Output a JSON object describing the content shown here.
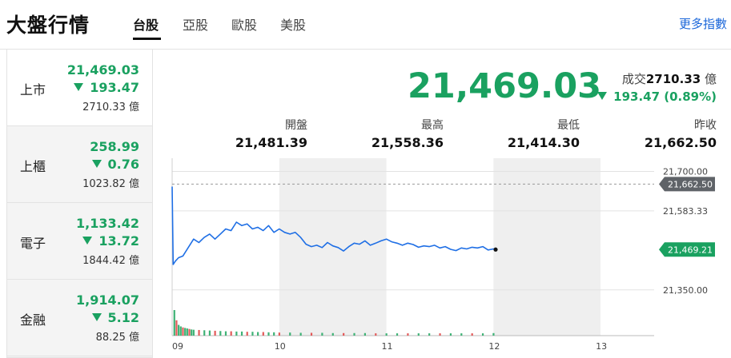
{
  "header": {
    "title": "大盤行情",
    "tabs": [
      {
        "label": "台股",
        "active": true
      },
      {
        "label": "亞股",
        "active": false
      },
      {
        "label": "歐股",
        "active": false
      },
      {
        "label": "美股",
        "active": false
      }
    ],
    "more_link": "更多指數"
  },
  "markets": [
    {
      "name": "上市",
      "price": "21,469.03",
      "change": "193.47",
      "volume": "2710.33 億",
      "direction": "down"
    },
    {
      "name": "上櫃",
      "price": "258.99",
      "change": "0.76",
      "volume": "1023.82 億",
      "direction": "down"
    },
    {
      "name": "電子",
      "price": "1,133.42",
      "change": "13.72",
      "volume": "1844.42 億",
      "direction": "down"
    },
    {
      "name": "金融",
      "price": "1,914.07",
      "change": "5.12",
      "volume": "88.25 億",
      "direction": "down"
    }
  ],
  "quote": {
    "price": "21,469.03",
    "turnover_label": "成交",
    "turnover_value": "2710.33",
    "turnover_unit": "億",
    "change": "193.47 (0.89%)",
    "stats": [
      {
        "label": "開盤",
        "value": "21,481.39"
      },
      {
        "label": "最高",
        "value": "21,558.36"
      },
      {
        "label": "最低",
        "value": "21,414.30"
      },
      {
        "label": "昨收",
        "value": "21,662.50"
      }
    ]
  },
  "colors": {
    "down": "#1aa160",
    "line": "#1f6fe5",
    "flag_prev": "#5f6368",
    "flag_last": "#1aa160",
    "more_link": "#1a66d9"
  },
  "chart_data": {
    "type": "line",
    "x_tick_labels": [
      "09",
      "10",
      "11",
      "12",
      "13"
    ],
    "y_tick_labels": [
      "21,700.00",
      "21,583.33",
      "21,350.00"
    ],
    "y_ticks": [
      21700,
      21583.33,
      21350
    ],
    "ylim": [
      21300,
      21720
    ],
    "xlim_hours": [
      9,
      13.5
    ],
    "reference_line": {
      "label": "21,662.50",
      "value": 21662.5
    },
    "last_value_label": "21,469.21",
    "last_value": 21469.21,
    "series": [
      {
        "x": [
          9.0,
          9.01,
          9.03,
          9.06,
          9.1,
          9.15,
          9.2,
          9.25,
          9.3,
          9.35,
          9.4,
          9.45,
          9.5,
          9.55,
          9.6,
          9.65,
          9.7,
          9.75,
          9.8,
          9.85,
          9.9,
          9.95,
          10.0,
          10.05,
          10.1,
          10.15,
          10.2,
          10.25,
          10.3,
          10.35,
          10.4,
          10.45,
          10.5,
          10.55,
          10.6,
          10.65,
          10.7,
          10.75,
          10.8,
          10.85,
          10.9,
          10.95,
          11.0,
          11.05,
          11.1,
          11.15,
          11.2,
          11.25,
          11.3,
          11.35,
          11.4,
          11.45,
          11.5,
          11.55,
          11.6,
          11.65,
          11.7,
          11.75,
          11.8,
          11.85,
          11.9,
          11.95,
          12.0,
          12.02
        ],
        "values": [
          21655,
          21425,
          21435,
          21445,
          21450,
          21475,
          21500,
          21490,
          21505,
          21515,
          21500,
          21515,
          21530,
          21525,
          21550,
          21540,
          21545,
          21530,
          21535,
          21525,
          21540,
          21520,
          21530,
          21520,
          21515,
          21520,
          21505,
          21485,
          21478,
          21482,
          21475,
          21490,
          21480,
          21475,
          21465,
          21478,
          21488,
          21485,
          21495,
          21482,
          21488,
          21495,
          21500,
          21492,
          21488,
          21482,
          21488,
          21484,
          21476,
          21480,
          21478,
          21482,
          21474,
          21478,
          21470,
          21466,
          21474,
          21471,
          21476,
          21474,
          21478,
          21468,
          21471,
          21469.21
        ]
      }
    ],
    "volume": {
      "x": [
        9.02,
        9.04,
        9.06,
        9.08,
        9.1,
        9.12,
        9.14,
        9.16,
        9.18,
        9.2,
        9.25,
        9.3,
        9.35,
        9.4,
        9.45,
        9.5,
        9.55,
        9.6,
        9.65,
        9.7,
        9.75,
        9.8,
        9.85,
        9.9,
        9.95,
        10.0,
        10.1,
        10.2,
        10.3,
        10.4,
        10.5,
        10.6,
        10.7,
        10.8,
        10.9,
        11.0,
        11.1,
        11.2,
        11.3,
        11.4,
        11.5,
        11.6,
        11.7,
        11.8,
        11.9,
        12.0
      ],
      "values": [
        100,
        60,
        42,
        36,
        32,
        30,
        28,
        26,
        24,
        23,
        22,
        21,
        20,
        19,
        18,
        17,
        17,
        16,
        16,
        15,
        15,
        14,
        14,
        13,
        13,
        12,
        12,
        11,
        11,
        11,
        10,
        10,
        10,
        10,
        9,
        9,
        9,
        9,
        9,
        9,
        9,
        9,
        9,
        9,
        9,
        10
      ],
      "ymax": 100
    }
  }
}
